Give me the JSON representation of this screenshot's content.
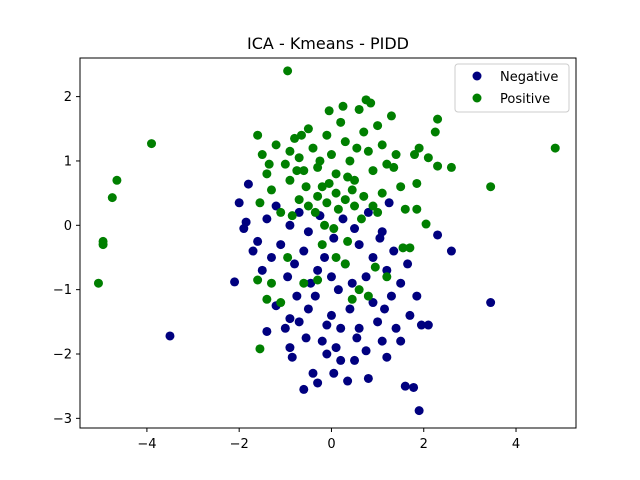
{
  "chart_data": {
    "type": "scatter",
    "title": "ICA - Kmeans - PIDD",
    "xlabel": "",
    "ylabel": "",
    "xlim": [
      -5.45,
      5.3
    ],
    "ylim": [
      -3.15,
      2.6
    ],
    "xticks": [
      -4,
      -2,
      0,
      2,
      4
    ],
    "yticks": [
      -3,
      -2,
      -1,
      0,
      1,
      2
    ],
    "grid": false,
    "legend_position": "top-right",
    "series": [
      {
        "name": "Negative",
        "color": "#00007f",
        "points": [
          [
            -3.5,
            -1.72
          ],
          [
            1.78,
            -2.52
          ],
          [
            1.9,
            -2.88
          ],
          [
            -0.6,
            -2.55
          ],
          [
            3.45,
            -1.2
          ],
          [
            2.6,
            -0.4
          ],
          [
            -2.1,
            -0.88
          ],
          [
            2.3,
            -0.15
          ],
          [
            -1.8,
            0.64
          ],
          [
            -1.4,
            -1.65
          ],
          [
            -1.2,
            -1.25
          ],
          [
            -1.0,
            -1.6
          ],
          [
            -0.9,
            -1.9
          ],
          [
            -0.85,
            -2.05
          ],
          [
            -0.7,
            -1.5
          ],
          [
            -0.5,
            -1.3
          ],
          [
            -0.4,
            -2.3
          ],
          [
            -0.3,
            -2.45
          ],
          [
            -0.2,
            -1.8
          ],
          [
            -0.1,
            -1.55
          ],
          [
            0.0,
            -1.4
          ],
          [
            0.1,
            -1.9
          ],
          [
            0.2,
            -2.1
          ],
          [
            0.35,
            -2.42
          ],
          [
            0.5,
            -2.1
          ],
          [
            0.6,
            -1.6
          ],
          [
            0.75,
            -1.95
          ],
          [
            0.8,
            -2.38
          ],
          [
            0.9,
            -1.2
          ],
          [
            1.0,
            -1.5
          ],
          [
            1.1,
            -1.8
          ],
          [
            1.2,
            -2.05
          ],
          [
            1.3,
            -1.1
          ],
          [
            1.4,
            -1.6
          ],
          [
            1.5,
            -1.8
          ],
          [
            1.6,
            -2.5
          ],
          [
            1.7,
            -1.4
          ],
          [
            1.85,
            -1.1
          ],
          [
            1.95,
            -1.55
          ],
          [
            2.1,
            -1.55
          ],
          [
            -1.5,
            -0.7
          ],
          [
            -1.3,
            -0.5
          ],
          [
            -1.1,
            -0.3
          ],
          [
            -0.95,
            -0.8
          ],
          [
            -0.8,
            -0.6
          ],
          [
            -0.6,
            -0.4
          ],
          [
            -0.45,
            -0.9
          ],
          [
            -0.3,
            -0.7
          ],
          [
            -0.15,
            -0.5
          ],
          [
            0.0,
            -0.8
          ],
          [
            0.15,
            -1.0
          ],
          [
            0.3,
            -0.6
          ],
          [
            0.45,
            -0.9
          ],
          [
            0.6,
            -0.3
          ],
          [
            0.75,
            -0.8
          ],
          [
            0.9,
            -0.5
          ],
          [
            1.05,
            -0.2
          ],
          [
            1.2,
            -0.7
          ],
          [
            1.35,
            -0.4
          ],
          [
            1.5,
            -0.9
          ],
          [
            1.65,
            -0.6
          ],
          [
            -1.9,
            -0.05
          ],
          [
            -1.6,
            -0.25
          ],
          [
            -1.4,
            0.1
          ],
          [
            -1.2,
            0.3
          ],
          [
            -0.9,
            0.0
          ],
          [
            -0.7,
            0.2
          ],
          [
            -0.5,
            -0.1
          ],
          [
            -0.25,
            0.15
          ],
          [
            0.05,
            -0.2
          ],
          [
            0.25,
            0.1
          ],
          [
            0.5,
            -0.05
          ],
          [
            0.8,
            0.2
          ],
          [
            1.1,
            -0.1
          ],
          [
            1.25,
            0.35
          ],
          [
            -1.7,
            -0.4
          ],
          [
            -2.0,
            0.35
          ],
          [
            -1.85,
            0.05
          ],
          [
            -0.75,
            -1.1
          ],
          [
            -0.55,
            -1.75
          ],
          [
            0.2,
            -1.6
          ],
          [
            0.4,
            -1.3
          ],
          [
            0.55,
            -1.75
          ],
          [
            1.15,
            -1.3
          ],
          [
            -0.35,
            -1.1
          ],
          [
            0.05,
            -2.3
          ],
          [
            -0.9,
            -1.45
          ],
          [
            -0.1,
            -2.0
          ]
        ]
      },
      {
        "name": "Positive",
        "color": "#007f00",
        "points": [
          [
            -0.95,
            2.4
          ],
          [
            -3.9,
            1.27
          ],
          [
            -4.65,
            0.7
          ],
          [
            -4.75,
            0.43
          ],
          [
            -4.95,
            -0.25
          ],
          [
            -4.95,
            -0.3
          ],
          [
            -5.05,
            -0.9
          ],
          [
            4.85,
            1.2
          ],
          [
            3.45,
            0.6
          ],
          [
            2.3,
            1.65
          ],
          [
            2.25,
            1.45
          ],
          [
            2.6,
            0.9
          ],
          [
            2.3,
            0.92
          ],
          [
            2.1,
            1.05
          ],
          [
            1.9,
            1.2
          ],
          [
            1.8,
            1.1
          ],
          [
            1.85,
            0.65
          ],
          [
            1.85,
            0.25
          ],
          [
            2.05,
            0.02
          ],
          [
            1.6,
            0.25
          ],
          [
            1.55,
            -0.35
          ],
          [
            1.7,
            -0.35
          ],
          [
            -1.55,
            -1.92
          ],
          [
            -1.4,
            -1.15
          ],
          [
            -1.6,
            -0.85
          ],
          [
            -1.3,
            -0.9
          ],
          [
            -1.1,
            -1.2
          ],
          [
            -0.6,
            -0.9
          ],
          [
            -0.3,
            -0.85
          ],
          [
            0.3,
            -0.6
          ],
          [
            0.6,
            -1.0
          ],
          [
            0.8,
            -1.1
          ],
          [
            1.2,
            -0.8
          ],
          [
            -0.95,
            -0.5
          ],
          [
            -0.2,
            -0.3
          ],
          [
            0.1,
            -0.5
          ],
          [
            0.35,
            -0.25
          ],
          [
            -1.6,
            1.4
          ],
          [
            -1.5,
            1.1
          ],
          [
            -1.4,
            0.8
          ],
          [
            -1.3,
            0.55
          ],
          [
            -1.2,
            1.25
          ],
          [
            -1.0,
            0.95
          ],
          [
            -0.9,
            0.7
          ],
          [
            -0.8,
            1.35
          ],
          [
            -0.7,
            1.05
          ],
          [
            -0.6,
            0.85
          ],
          [
            -0.5,
            1.5
          ],
          [
            -0.4,
            1.2
          ],
          [
            -0.3,
            0.9
          ],
          [
            -0.2,
            0.6
          ],
          [
            -0.1,
            1.4
          ],
          [
            0.0,
            1.1
          ],
          [
            0.1,
            0.8
          ],
          [
            0.2,
            1.6
          ],
          [
            0.3,
            1.3
          ],
          [
            0.4,
            1.0
          ],
          [
            0.5,
            0.7
          ],
          [
            0.6,
            1.8
          ],
          [
            0.7,
            1.45
          ],
          [
            0.8,
            1.15
          ],
          [
            0.9,
            0.85
          ],
          [
            1.0,
            1.55
          ],
          [
            1.1,
            1.25
          ],
          [
            1.2,
            0.95
          ],
          [
            1.3,
            1.7
          ],
          [
            1.4,
            1.1
          ],
          [
            1.5,
            0.6
          ],
          [
            -0.7,
            0.4
          ],
          [
            -0.5,
            0.3
          ],
          [
            -0.3,
            0.45
          ],
          [
            -0.1,
            0.35
          ],
          [
            0.1,
            0.5
          ],
          [
            0.3,
            0.4
          ],
          [
            0.5,
            0.3
          ],
          [
            0.7,
            0.45
          ],
          [
            0.9,
            0.3
          ],
          [
            1.1,
            0.5
          ],
          [
            -1.1,
            0.2
          ],
          [
            -0.85,
            0.15
          ],
          [
            -0.35,
            0.2
          ],
          [
            0.15,
            0.25
          ],
          [
            0.65,
            0.1
          ],
          [
            0.75,
            1.95
          ],
          [
            0.85,
            1.9
          ],
          [
            0.25,
            1.85
          ],
          [
            -0.05,
            1.78
          ],
          [
            -0.65,
            1.4
          ],
          [
            -0.9,
            1.15
          ],
          [
            -1.55,
            0.35
          ],
          [
            -1.35,
            0.95
          ],
          [
            0.45,
            -1.15
          ],
          [
            0.95,
            -0.65
          ],
          [
            -0.15,
            0.0
          ],
          [
            0.05,
            -0.05
          ],
          [
            1.0,
            0.2
          ],
          [
            -0.75,
            0.85
          ],
          [
            -0.25,
            1.0
          ],
          [
            0.35,
            0.75
          ],
          [
            0.55,
            1.2
          ],
          [
            1.35,
            0.9
          ],
          [
            -0.05,
            0.65
          ],
          [
            0.45,
            0.55
          ],
          [
            -0.55,
            0.6
          ]
        ]
      }
    ]
  }
}
